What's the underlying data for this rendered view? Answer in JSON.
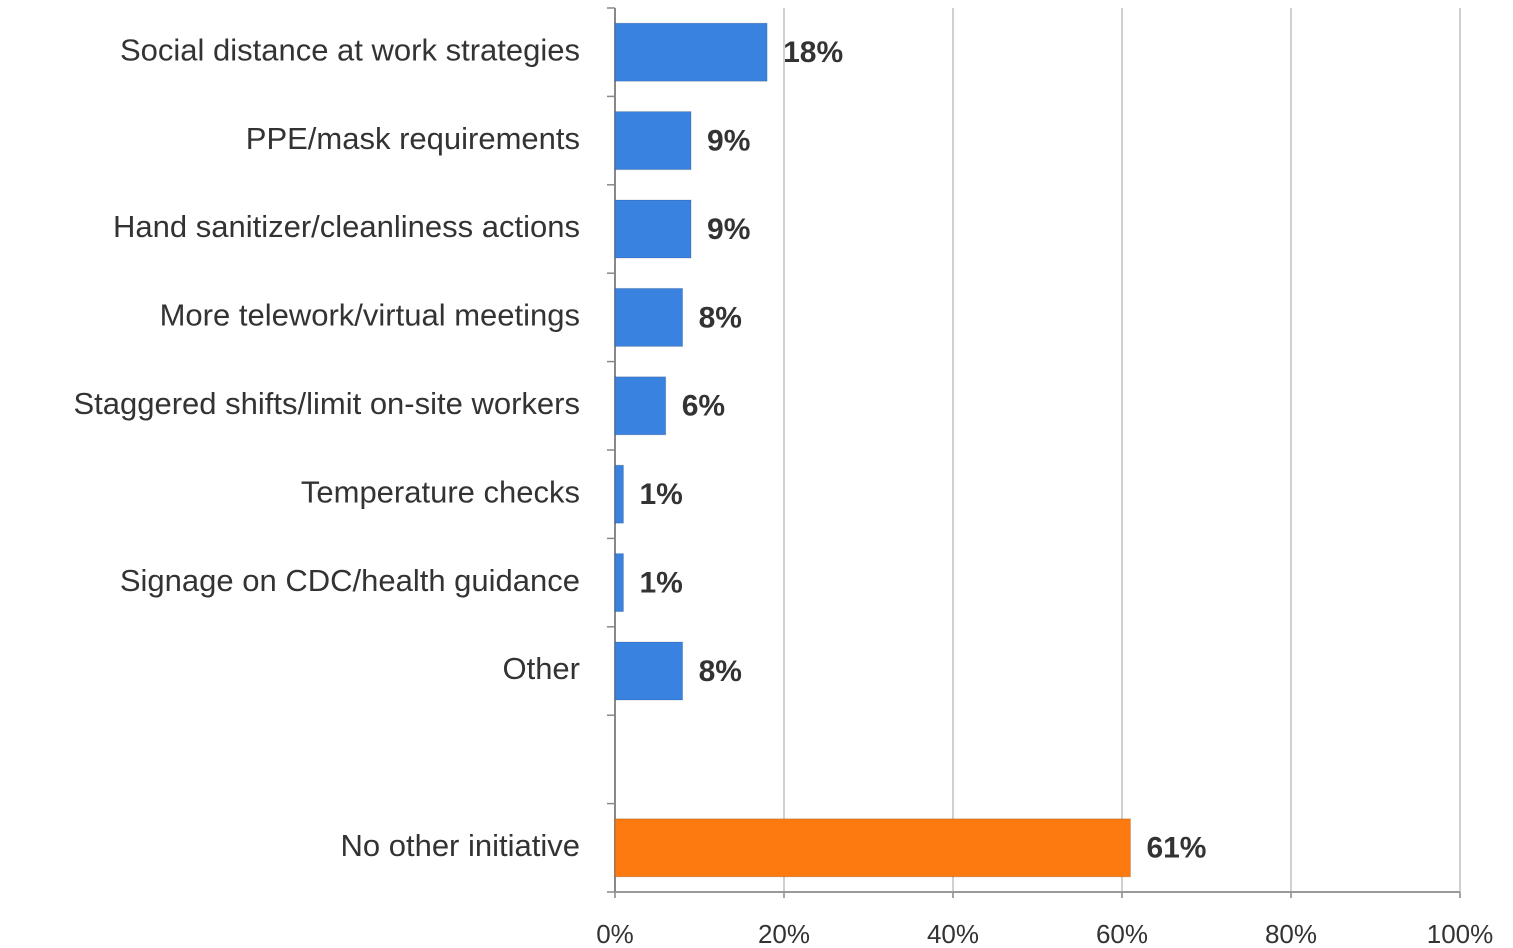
{
  "chart_data": {
    "type": "hbar",
    "categories": [
      "Social distance at work strategies",
      "PPE/mask requirements",
      "Hand sanitizer/cleanliness actions",
      "More telework/virtual meetings",
      "Staggered shifts/limit on-site workers",
      "Temperature checks",
      "Signage on CDC/health guidance",
      "Other",
      null,
      "No other initiative"
    ],
    "values": [
      18,
      9,
      9,
      8,
      6,
      1,
      1,
      8,
      null,
      61
    ],
    "value_labels": [
      "18%",
      "9%",
      "9%",
      "8%",
      "6%",
      "1%",
      "1%",
      "8%",
      null,
      "61%"
    ],
    "colors": [
      "#3a82e0",
      "#3a82e0",
      "#3a82e0",
      "#3a82e0",
      "#3a82e0",
      "#3a82e0",
      "#3a82e0",
      "#3a82e0",
      null,
      "#fd7a10"
    ],
    "xlim": [
      0,
      100
    ],
    "xticks": [
      {
        "value": 0,
        "label": "0%"
      },
      {
        "value": 20,
        "label": "20%"
      },
      {
        "value": 40,
        "label": "40%"
      },
      {
        "value": 60,
        "label": "60%"
      },
      {
        "value": 80,
        "label": "80%"
      },
      {
        "value": 100,
        "label": "100%"
      }
    ],
    "grid": true
  }
}
